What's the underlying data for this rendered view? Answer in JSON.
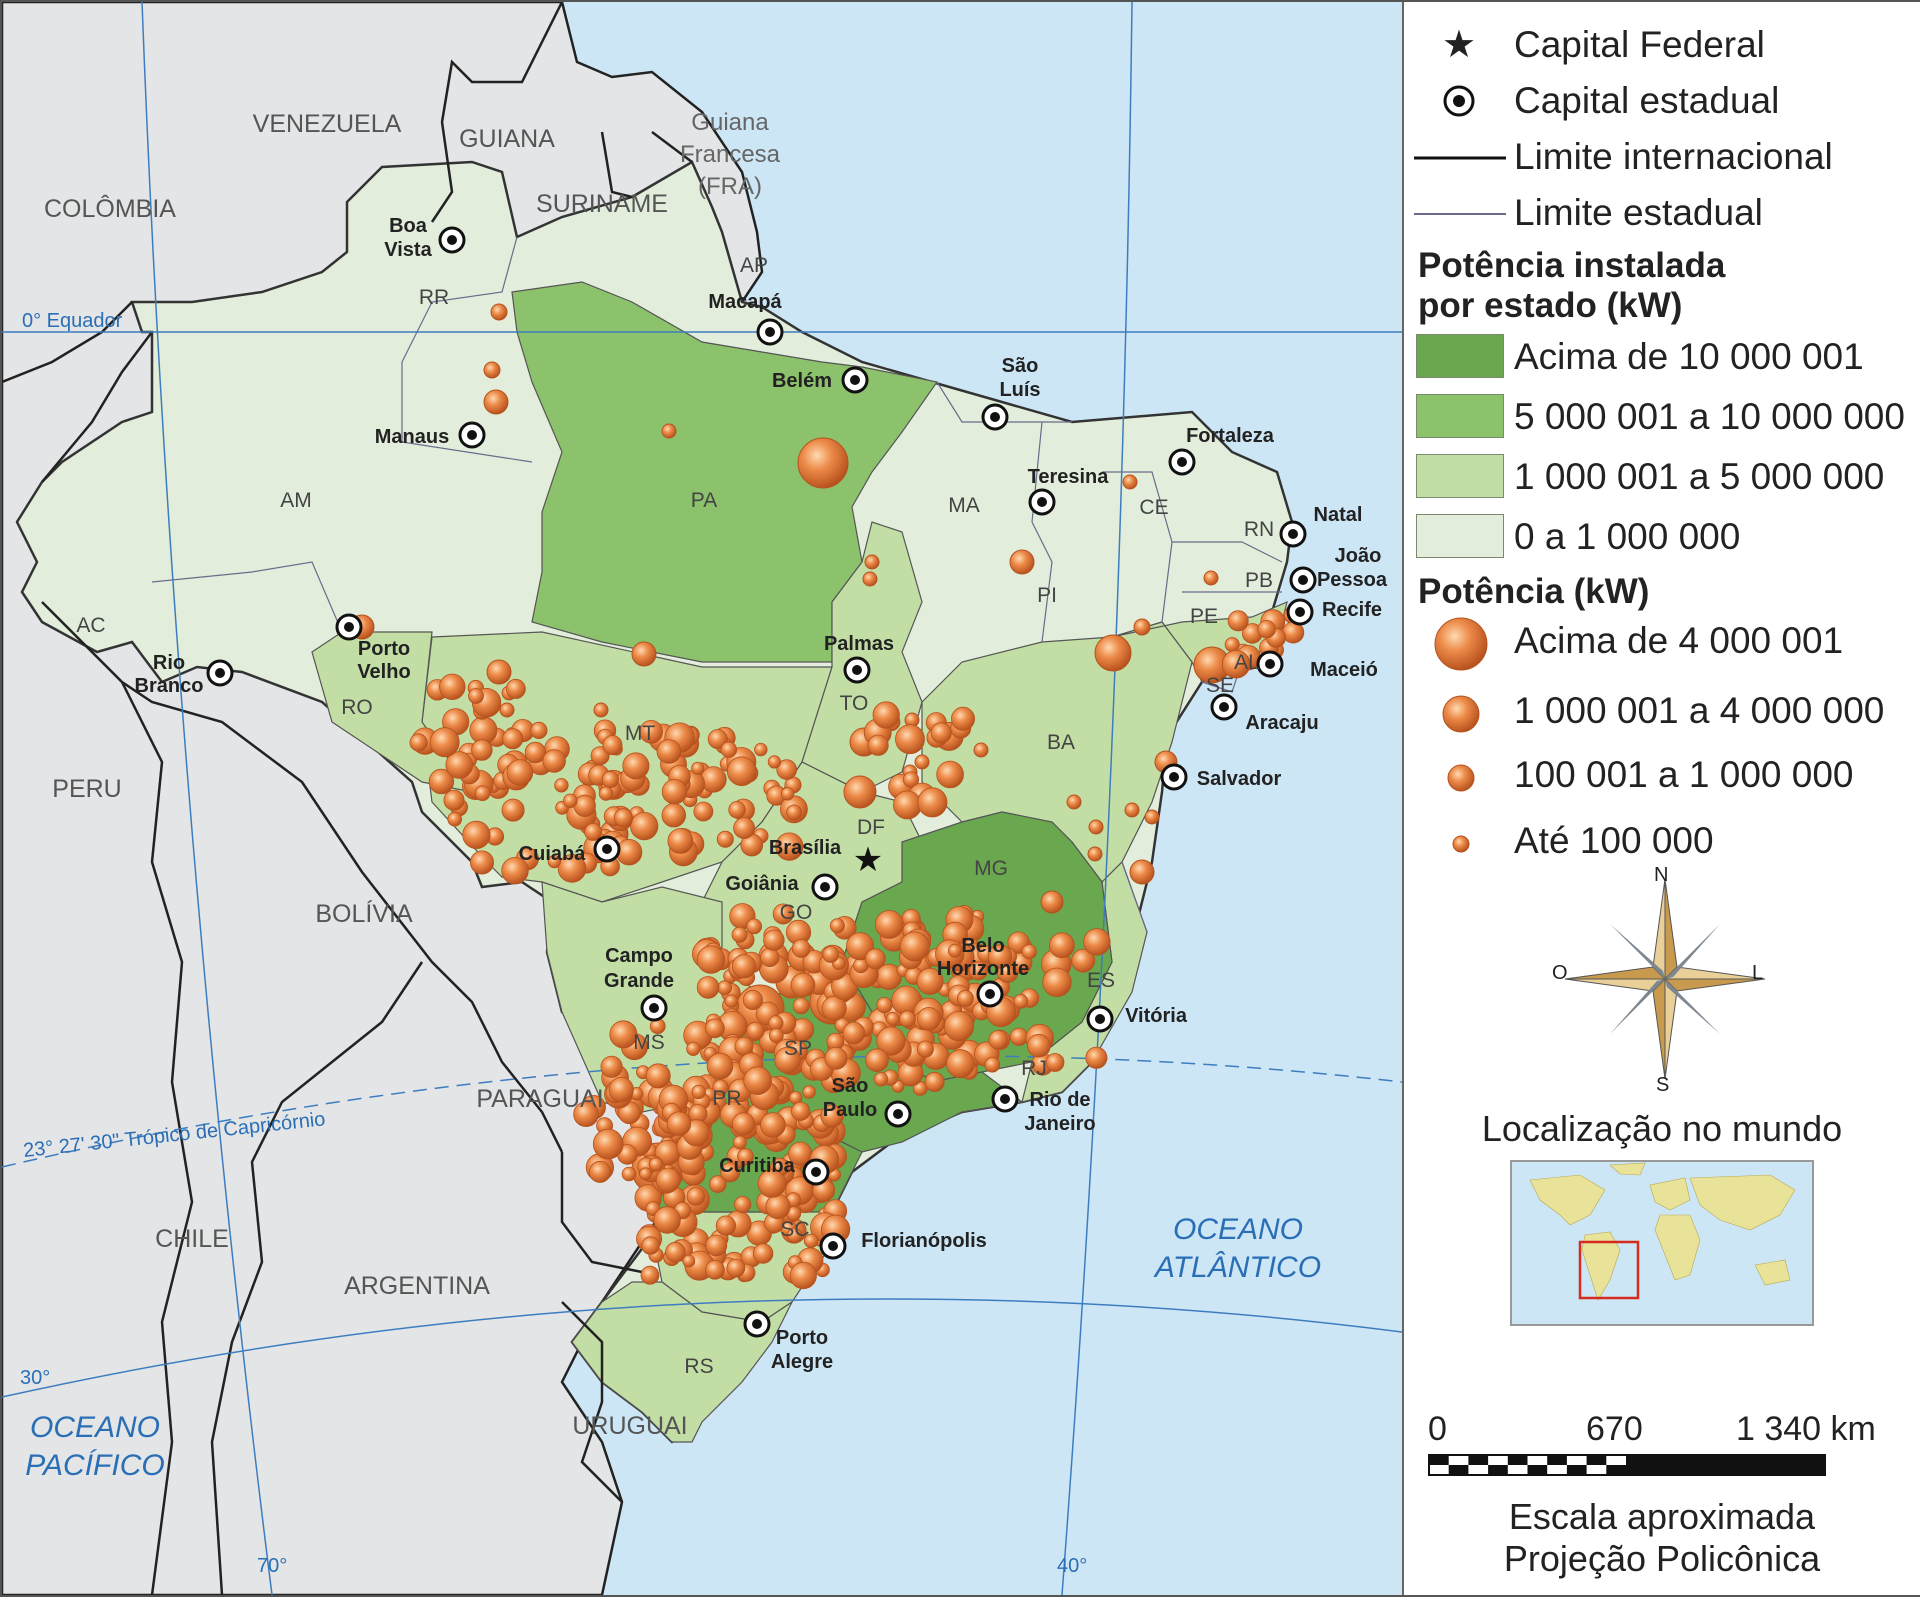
{
  "colors": {
    "ocean": "#cde6f6",
    "foreign_land": "#e3e5e7",
    "class_over_10m": "#6aa84f",
    "class_5m_10m": "#8cc26b",
    "class_1m_5m": "#c3dea5",
    "class_0_1m": "#e2eedb",
    "bubble": "#e0773a",
    "water_label": "#2a6fb5"
  },
  "legend": {
    "symbols": [
      {
        "icon": "star-icon",
        "label": "Capital Federal"
      },
      {
        "icon": "capital-dot-icon",
        "label": "Capital estadual"
      },
      {
        "icon": "thick-line-icon",
        "label": "Limite internacional"
      },
      {
        "icon": "thin-line-icon",
        "label": "Limite estadual"
      }
    ],
    "state_title_1": "Potência instalada",
    "state_title_2": "por estado (kW)",
    "state_classes": [
      {
        "label": "Acima de 10 000 001",
        "color": "#6aa84f"
      },
      {
        "label": "5 000 001 a 10 000 000",
        "color": "#8cc26b"
      },
      {
        "label": "1 000 001 a 5 000 000",
        "color": "#c3dea5"
      },
      {
        "label": "0 a 1 000 000",
        "color": "#e2eedb"
      }
    ],
    "power_title": "Potência (kW)",
    "power_classes": [
      {
        "label": "Acima de 4 000 001"
      },
      {
        "label": "1 000 001 a 4 000 000"
      },
      {
        "label": "100 001 a 1 000 000"
      },
      {
        "label": "Até 100 000"
      }
    ],
    "compass": {
      "n": "N",
      "s": "S",
      "l": "L",
      "o": "O"
    },
    "world_title": "Localização no mundo",
    "scale": {
      "ticks": [
        "0",
        "670",
        "1 340 km"
      ],
      "line1": "Escala aproximada",
      "line2": "Projeção Policônica"
    }
  },
  "map": {
    "countries": [
      "VENEZUELA",
      "GUIANA",
      "SURINAME",
      "COLÔMBIA",
      "PERU",
      "BOLÍVIA",
      "PARAGUAI",
      "CHILE",
      "ARGENTINA",
      "URUGUAI"
    ],
    "guiana_francesa": [
      "Guiana",
      "Francesa",
      "(FRA)"
    ],
    "oceans": {
      "atlantic": [
        "OCEANO",
        "ATLÂNTICO"
      ],
      "pacific": [
        "OCEANO",
        "PACÍFICO"
      ]
    },
    "lines": {
      "equator": "0° Equador",
      "tropic": "23° 27' 30\" Trópico de Capricórnio",
      "lat30": "30°",
      "lon70": "70°",
      "lon40": "40°"
    },
    "states": [
      "RR",
      "AP",
      "AM",
      "PA",
      "MA",
      "CE",
      "RN",
      "PB",
      "PE",
      "AL",
      "SE",
      "PI",
      "AC",
      "RO",
      "MT",
      "TO",
      "BA",
      "GO",
      "DF",
      "MG",
      "ES",
      "MS",
      "SP",
      "RJ",
      "PR",
      "SC",
      "RS"
    ],
    "capitals": {
      "boa_vista": [
        "Boa",
        "Vista"
      ],
      "macapa": "Macapá",
      "belem": "Belém",
      "sao_luis": [
        "São",
        "Luís"
      ],
      "manaus": "Manaus",
      "fortaleza": "Fortaleza",
      "teresina": "Teresina",
      "natal": "Natal",
      "joao_pessoa": [
        "João",
        "Pessoa"
      ],
      "recife": "Recife",
      "maceio": "Maceió",
      "aracaju": "Aracaju",
      "salvador": "Salvador",
      "palmas": "Palmas",
      "porto_velho": [
        "Porto",
        "Velho"
      ],
      "rio_branco": [
        "Rio",
        "Branco"
      ],
      "cuiaba": "Cuiabá",
      "brasilia": "Brasília",
      "goiania": "Goiânia",
      "campo_grande": [
        "Campo",
        "Grande"
      ],
      "belo_horizonte": [
        "Belo",
        "Horizonte"
      ],
      "vitoria": "Vitória",
      "sao_paulo": [
        "São",
        "Paulo"
      ],
      "rio_de_janeiro": [
        "Rio de",
        "Janeiro"
      ],
      "curitiba": "Curitiba",
      "florianopolis": "Florianópolis",
      "porto_alegre": [
        "Porto",
        "Alegre"
      ]
    }
  }
}
